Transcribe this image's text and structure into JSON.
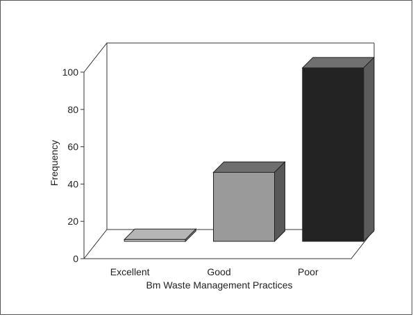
{
  "chart_data": {
    "type": "bar",
    "categories": [
      "Excellent",
      "Good",
      "Poor"
    ],
    "values": [
      1,
      37,
      93
    ],
    "xlabel": "Bm Waste Management Practices",
    "ylabel": "Frequency",
    "ylim": [
      0,
      100
    ],
    "yticks": [
      0,
      20,
      40,
      60,
      80,
      100
    ],
    "grid": false,
    "legend": "none",
    "three_d": true,
    "colors": {
      "Excellent": [
        "#cfcfcf",
        "#b5b5b5",
        "#8f8f8f"
      ],
      "Good": [
        "#9a9a9a",
        "#6f6f6f",
        "#585858"
      ],
      "Poor": [
        "#232323",
        "#707070",
        "#5c5c5c"
      ]
    }
  }
}
